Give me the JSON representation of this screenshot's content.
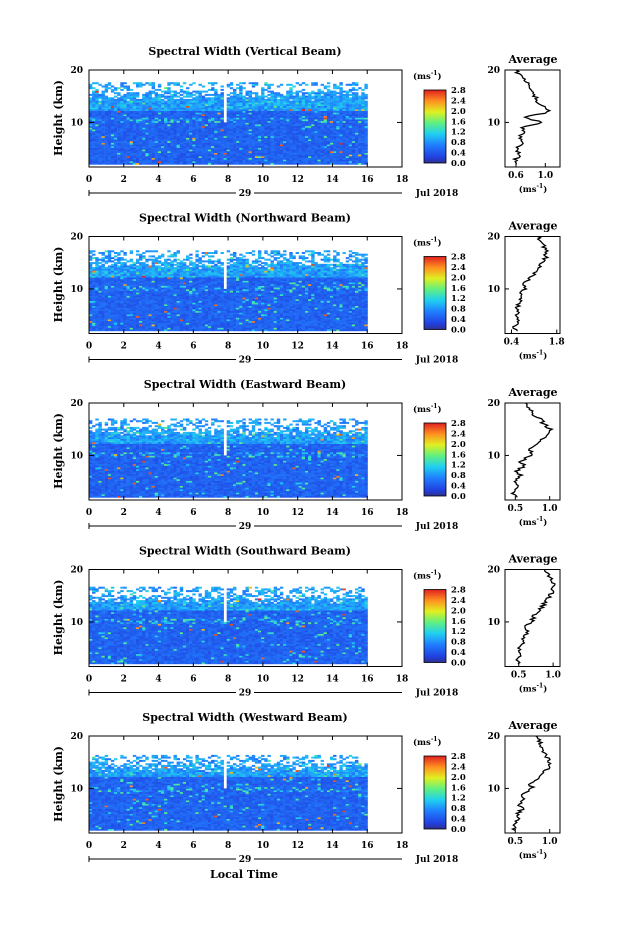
{
  "figure": {
    "x_axis_title": "Local Time",
    "date_label": "Jul 2018",
    "day_label": "29",
    "colorbar_unit": "(ms",
    "colorbar_unit_exp": "-1",
    "colorbar_unit_close": ")",
    "avg_title": "Average",
    "ylabel": "Height (km)"
  },
  "chart_data": [
    {
      "type": "heatmap",
      "title": "Spectral Width (Vertical Beam)",
      "xlabel": "Local Time",
      "ylabel": "Height (km)",
      "x_ticks": [
        "0",
        "2",
        "4",
        "6",
        "8",
        "10",
        "12",
        "14",
        "16",
        "18"
      ],
      "y_ticks": [
        "10",
        "20"
      ],
      "xlim": [
        0,
        18
      ],
      "ylim": [
        1.5,
        20
      ],
      "colorbar_ticks": [
        "2.8",
        "2.4",
        "2.0",
        "1.6",
        "1.2",
        "0.8",
        "0.4",
        "0.0"
      ],
      "colorbar_range": [
        0,
        2.8
      ],
      "data_end_time": 16,
      "gap_time": 7.6,
      "average_profile": {
        "title": "Average",
        "xlabel": "(ms-1)",
        "x_ticks": [
          "0.6",
          "1.0"
        ],
        "xlim": [
          0.45,
          1.2
        ],
        "heights": [
          2,
          3,
          4,
          5,
          6,
          7,
          8,
          9,
          10,
          11,
          12,
          13,
          14,
          15,
          16,
          17,
          18,
          19,
          20
        ],
        "values": [
          0.63,
          0.6,
          0.65,
          0.62,
          0.68,
          0.64,
          0.7,
          0.68,
          0.95,
          0.72,
          1.05,
          0.98,
          0.9,
          0.85,
          0.82,
          0.8,
          0.72,
          0.65,
          0.6
        ]
      }
    },
    {
      "type": "heatmap",
      "title": "Spectral Width (Northward Beam)",
      "xlabel": "Local Time",
      "ylabel": "Height (km)",
      "x_ticks": [
        "0",
        "2",
        "4",
        "6",
        "8",
        "10",
        "12",
        "14",
        "16",
        "18"
      ],
      "y_ticks": [
        "10",
        "20"
      ],
      "xlim": [
        0,
        18
      ],
      "ylim": [
        1.5,
        20
      ],
      "colorbar_ticks": [
        "2.8",
        "2.4",
        "2.0",
        "1.6",
        "1.2",
        "0.8",
        "0.4",
        "0.0"
      ],
      "colorbar_range": [
        0,
        2.8
      ],
      "data_end_time": 16,
      "gap_time": 7.6,
      "average_profile": {
        "title": "Average",
        "xlabel": "(ms-1)",
        "x_ticks": [
          "0.4",
          "1.8"
        ],
        "xlim": [
          0.2,
          1.9
        ],
        "heights": [
          2,
          3,
          4,
          5,
          6,
          7,
          8,
          9,
          10,
          11,
          12,
          13,
          14,
          15,
          16,
          17,
          18,
          19,
          20
        ],
        "values": [
          0.55,
          0.5,
          0.6,
          0.55,
          0.62,
          0.58,
          0.7,
          0.65,
          0.85,
          0.8,
          0.95,
          1.1,
          1.2,
          1.35,
          1.45,
          1.5,
          1.4,
          1.3,
          1.2
        ]
      }
    },
    {
      "type": "heatmap",
      "title": "Spectral Width (Eastward Beam)",
      "xlabel": "Local Time",
      "ylabel": "Height (km)",
      "x_ticks": [
        "0",
        "2",
        "4",
        "6",
        "8",
        "10",
        "12",
        "14",
        "16",
        "18"
      ],
      "y_ticks": [
        "10",
        "20"
      ],
      "xlim": [
        0,
        18
      ],
      "ylim": [
        1.5,
        20
      ],
      "colorbar_ticks": [
        "2.8",
        "2.4",
        "2.0",
        "1.6",
        "1.2",
        "0.8",
        "0.4",
        "0.0"
      ],
      "colorbar_range": [
        0,
        2.8
      ],
      "data_end_time": 16,
      "gap_time": 7.6,
      "average_profile": {
        "title": "Average",
        "xlabel": "(ms-1)",
        "x_ticks": [
          "0.5",
          "1.0"
        ],
        "xlim": [
          0.35,
          1.15
        ],
        "heights": [
          2,
          3,
          4,
          5,
          6,
          7,
          8,
          9,
          10,
          11,
          12,
          13,
          14,
          15,
          16,
          17,
          18,
          19,
          20
        ],
        "values": [
          0.5,
          0.45,
          0.55,
          0.5,
          0.58,
          0.52,
          0.62,
          0.58,
          0.75,
          0.7,
          0.8,
          0.88,
          0.95,
          1.0,
          0.92,
          0.85,
          0.75,
          0.7,
          0.65
        ]
      }
    },
    {
      "type": "heatmap",
      "title": "Spectral Width (Southward Beam)",
      "xlabel": "Local Time",
      "ylabel": "Height (km)",
      "x_ticks": [
        "0",
        "2",
        "4",
        "6",
        "8",
        "10",
        "12",
        "14",
        "16",
        "18"
      ],
      "y_ticks": [
        "10",
        "20"
      ],
      "xlim": [
        0,
        18
      ],
      "ylim": [
        1.5,
        20
      ],
      "colorbar_ticks": [
        "2.8",
        "2.4",
        "2.0",
        "1.6",
        "1.2",
        "0.8",
        "0.4",
        "0.0"
      ],
      "colorbar_range": [
        0,
        2.8
      ],
      "data_end_time": 16,
      "gap_time": 7.6,
      "average_profile": {
        "title": "Average",
        "xlabel": "(ms-1)",
        "x_ticks": [
          "0.5",
          "1.0"
        ],
        "xlim": [
          0.3,
          1.1
        ],
        "heights": [
          2,
          3,
          4,
          5,
          6,
          7,
          8,
          9,
          10,
          11,
          12,
          13,
          14,
          15,
          16,
          17,
          18,
          19,
          20
        ],
        "values": [
          0.5,
          0.45,
          0.55,
          0.5,
          0.6,
          0.55,
          0.62,
          0.58,
          0.72,
          0.7,
          0.78,
          0.85,
          0.9,
          0.95,
          1.0,
          1.02,
          0.98,
          0.92,
          0.88
        ]
      }
    },
    {
      "type": "heatmap",
      "title": "Spectral Width (Westward Beam)",
      "xlabel": "Local Time",
      "ylabel": "Height (km)",
      "x_ticks": [
        "0",
        "2",
        "4",
        "6",
        "8",
        "10",
        "12",
        "14",
        "16",
        "18"
      ],
      "y_ticks": [
        "10",
        "20"
      ],
      "xlim": [
        0,
        18
      ],
      "ylim": [
        1.5,
        20
      ],
      "colorbar_ticks": [
        "2.8",
        "2.4",
        "2.0",
        "1.6",
        "1.2",
        "0.8",
        "0.4",
        "0.0"
      ],
      "colorbar_range": [
        0,
        2.8
      ],
      "data_end_time": 16,
      "gap_time": 7.6,
      "average_profile": {
        "title": "Average",
        "xlabel": "(ms-1)",
        "x_ticks": [
          "0.5",
          "1.0"
        ],
        "xlim": [
          0.35,
          1.15
        ],
        "heights": [
          2,
          3,
          4,
          5,
          6,
          7,
          8,
          9,
          10,
          11,
          12,
          13,
          14,
          15,
          16,
          17,
          18,
          19,
          20
        ],
        "values": [
          0.5,
          0.47,
          0.55,
          0.52,
          0.6,
          0.55,
          0.63,
          0.6,
          0.75,
          0.72,
          0.82,
          0.9,
          0.98,
          1.0,
          0.95,
          0.9,
          0.88,
          0.85,
          0.8
        ]
      }
    }
  ]
}
